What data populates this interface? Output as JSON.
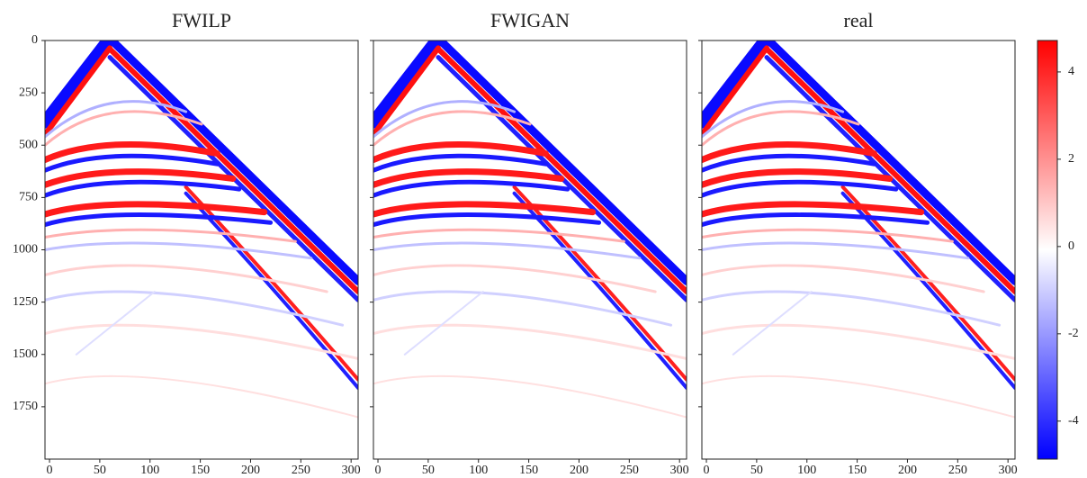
{
  "chart_data": [
    {
      "type": "heatmap",
      "title": "FWILP",
      "xlim": [
        -4.5,
        307
      ],
      "ylim": [
        2000,
        0
      ],
      "xticks": [
        0,
        50,
        100,
        150,
        200,
        250,
        300
      ],
      "yticks": [
        0,
        250,
        500,
        750,
        1000,
        1250,
        1500,
        1750
      ]
    },
    {
      "type": "heatmap",
      "title": "FWIGAN",
      "xlim": [
        -4.5,
        307
      ],
      "ylim": [
        2000,
        0
      ],
      "xticks": [
        0,
        50,
        100,
        150,
        200,
        250,
        300
      ]
    },
    {
      "type": "heatmap",
      "title": "real",
      "xlim": [
        -4.5,
        307
      ],
      "ylim": [
        2000,
        0
      ],
      "xticks": [
        0,
        50,
        100,
        150,
        200,
        250,
        300
      ]
    }
  ],
  "colorbar": {
    "clim": [
      -4.87,
      4.72
    ],
    "ticks": [
      -4,
      -2,
      0,
      2,
      4
    ],
    "colors": [
      "#0000ff",
      "#ffffff",
      "#ff0000"
    ]
  }
}
